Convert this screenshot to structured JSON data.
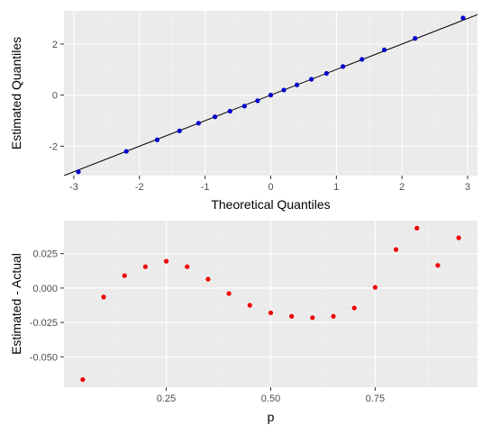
{
  "chart_data": [
    {
      "type": "scatter",
      "xlabel": "Theoretical Quantiles",
      "ylabel": "Estimated Quantiles",
      "xlim": [
        -3.15,
        3.15
      ],
      "ylim": [
        -3.15,
        3.3
      ],
      "xticks": [
        -3,
        -2,
        -1,
        0,
        1,
        2,
        3
      ],
      "yticks": [
        -2,
        0,
        2
      ],
      "grid": true,
      "point_color": "#0000cc",
      "reference_line": {
        "slope": 1,
        "intercept": 0,
        "color": "#000000"
      },
      "series": [
        {
          "x": [
            -2.93,
            -2.2,
            -1.73,
            -1.39,
            -1.1,
            -0.85,
            -0.62,
            -0.4,
            -0.2,
            0,
            0.2,
            0.4,
            0.62,
            0.85,
            1.1,
            1.39,
            1.73,
            2.2,
            2.93
          ],
          "y": [
            -3.0,
            -2.2,
            -1.75,
            -1.4,
            -1.1,
            -0.85,
            -0.63,
            -0.43,
            -0.22,
            0,
            0.2,
            0.4,
            0.62,
            0.85,
            1.12,
            1.4,
            1.77,
            2.22,
            3.02
          ]
        }
      ]
    },
    {
      "type": "scatter",
      "xlabel": "p",
      "ylabel": "Estimated - Actual",
      "xlim": [
        0.005,
        0.995
      ],
      "ylim": [
        -0.072,
        0.049
      ],
      "xticks": [
        0.25,
        0.5,
        0.75
      ],
      "xtick_labels": [
        "0.25",
        "0.50",
        "0.75"
      ],
      "yticks": [
        -0.05,
        -0.025,
        0,
        0.025
      ],
      "ytick_labels": [
        "-0.050",
        "-0.025",
        "0.000",
        "0.025"
      ],
      "grid": true,
      "point_color": "#ee0000",
      "series": [
        {
          "x": [
            0.05,
            0.1,
            0.15,
            0.2,
            0.25,
            0.3,
            0.35,
            0.4,
            0.45,
            0.5,
            0.55,
            0.6,
            0.65,
            0.7,
            0.75,
            0.8,
            0.85,
            0.9,
            0.95
          ],
          "y": [
            -0.0665,
            -0.0065,
            0.009,
            0.0155,
            0.0195,
            0.0155,
            0.0065,
            -0.004,
            -0.0125,
            -0.018,
            -0.0205,
            -0.0215,
            -0.0205,
            -0.0145,
            0.0005,
            0.028,
            0.0435,
            0.0165,
            0.0365
          ]
        }
      ]
    }
  ]
}
